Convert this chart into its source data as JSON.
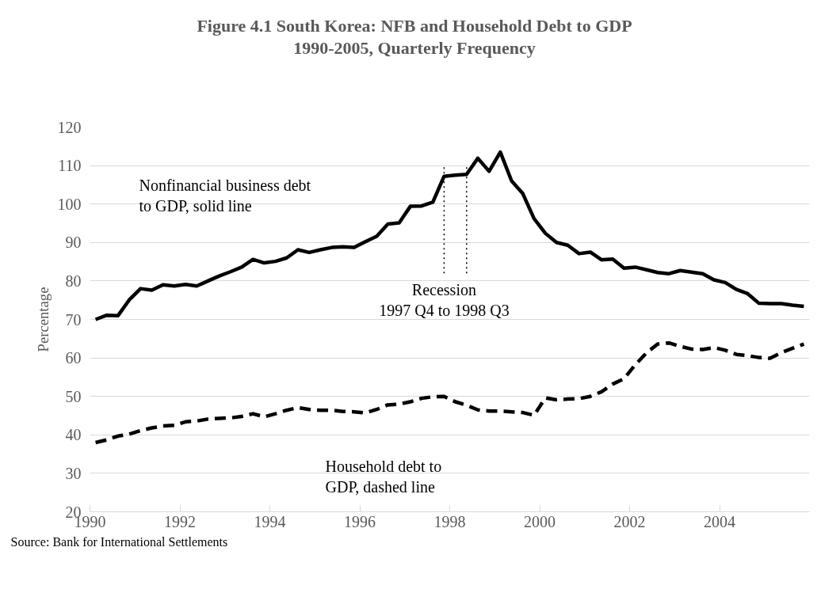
{
  "chart_data": {
    "type": "line",
    "title": "Figure 4.1 South Korea: NFB and Household Debt to GDP\n1990-2005, Quarterly Frequency",
    "ylabel": "Percentage",
    "x": [
      1990.125,
      1990.375,
      1990.625,
      1990.875,
      1991.125,
      1991.375,
      1991.625,
      1991.875,
      1992.125,
      1992.375,
      1992.625,
      1992.875,
      1993.125,
      1993.375,
      1993.625,
      1993.875,
      1994.125,
      1994.375,
      1994.625,
      1994.875,
      1995.125,
      1995.375,
      1995.625,
      1995.875,
      1996.125,
      1996.375,
      1996.625,
      1996.875,
      1997.125,
      1997.375,
      1997.625,
      1997.875,
      1998.125,
      1998.375,
      1998.625,
      1998.875,
      1999.125,
      1999.375,
      1999.625,
      1999.875,
      2000.125,
      2000.375,
      2000.625,
      2000.875,
      2001.125,
      2001.375,
      2001.625,
      2001.875,
      2002.125,
      2002.375,
      2002.625,
      2002.875,
      2003.125,
      2003.375,
      2003.625,
      2003.875,
      2004.125,
      2004.375,
      2004.625,
      2004.875,
      2005.125,
      2005.375,
      2005.625,
      2005.875
    ],
    "series": [
      {
        "name": "Nonfinancial business debt\nto GDP, solid line",
        "color": "#000000",
        "line_style": "solid",
        "values": [
          70.0,
          71.1,
          71.0,
          75.1,
          78.0,
          77.6,
          79.0,
          78.7,
          79.1,
          78.7,
          80.0,
          81.3,
          82.4,
          83.6,
          85.6,
          84.7,
          85.1,
          86.0,
          88.1,
          87.4,
          88.1,
          88.7,
          88.9,
          88.7,
          90.2,
          91.6,
          94.8,
          95.1,
          99.4,
          99.5,
          100.5,
          107.2,
          107.5,
          107.7,
          111.9,
          108.5,
          113.5,
          106.0,
          102.7,
          96.2,
          92.4,
          90.0,
          89.3,
          87.1,
          87.5,
          85.5,
          85.7,
          83.3,
          83.6,
          82.9,
          82.2,
          81.9,
          82.7,
          82.3,
          81.9,
          80.3,
          79.6,
          77.8,
          76.7,
          74.2,
          74.1,
          74.1,
          73.7,
          73.4
        ]
      },
      {
        "name": "Household debt to\nGDP, dashed line",
        "color": "#000000",
        "line_style": "dashed",
        "values": [
          38.0,
          38.7,
          39.7,
          40.2,
          41.1,
          41.8,
          42.3,
          42.5,
          43.4,
          43.6,
          44.1,
          44.3,
          44.4,
          44.8,
          45.5,
          44.7,
          45.5,
          46.4,
          47.1,
          46.6,
          46.4,
          46.4,
          46.1,
          46.0,
          45.7,
          46.6,
          47.8,
          48.0,
          48.6,
          49.5,
          49.9,
          50.0,
          48.6,
          47.7,
          46.5,
          46.2,
          46.2,
          46.0,
          45.8,
          45.1,
          49.6,
          49.1,
          49.3,
          49.4,
          50.0,
          51.2,
          53.2,
          54.6,
          58.2,
          61.3,
          63.6,
          63.9,
          63.0,
          62.3,
          62.2,
          62.7,
          62.0,
          60.9,
          60.6,
          60.1,
          59.9,
          61.4,
          62.5,
          63.6
        ]
      }
    ],
    "xlim": [
      1990,
      2006
    ],
    "xticks": [
      1990,
      1992,
      1994,
      1996,
      1998,
      2000,
      2002,
      2004
    ],
    "ylim": [
      20,
      120
    ],
    "yticks": [
      20,
      30,
      40,
      50,
      60,
      70,
      80,
      90,
      100,
      110,
      120
    ],
    "grid": "y",
    "legend": false,
    "ref_lines": [
      {
        "axis": "x",
        "value": 1997.875,
        "label": "Recession\n1997 Q4 to 1998 Q3",
        "line_style": "dotted",
        "color": "#000000"
      },
      {
        "axis": "x",
        "value": 1998.375,
        "line_style": "dotted",
        "color": "#000000"
      }
    ],
    "annotations": [
      "Source: Bank for International Settlements"
    ]
  }
}
